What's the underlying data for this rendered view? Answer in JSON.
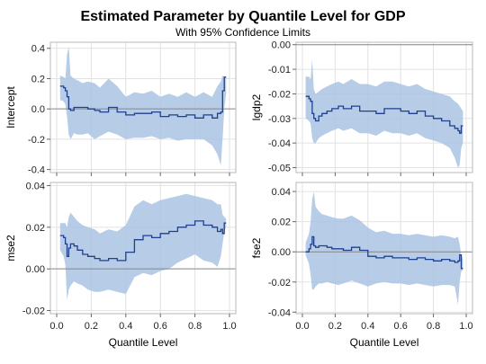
{
  "title": "Estimated Parameter by Quantile Level for GDP",
  "subtitle": "With 95% Confidence Limits",
  "colors": {
    "band": "#a9c3e3",
    "estimate": "#1f3f8f",
    "reference": "#888888",
    "frame": "#b8b8b8",
    "grid": "#e2e2e2"
  },
  "chart_data": [
    {
      "type": "area",
      "panel": "top-left",
      "ylabel": "Intercept",
      "xlabel": "",
      "xlim": [
        0,
        1
      ],
      "ylim": [
        -0.42,
        0.44
      ],
      "yticks": [
        -0.4,
        -0.2,
        0.0,
        0.2,
        0.4
      ],
      "ytick_labels": [
        "-0.4",
        "-0.2",
        "0.0",
        "0.2",
        "0.4"
      ],
      "xticks": [
        0.0,
        0.2,
        0.4,
        0.6,
        0.8,
        1.0
      ],
      "grid": true,
      "reference_line": 0,
      "x": [
        0.02,
        0.04,
        0.05,
        0.06,
        0.07,
        0.08,
        0.1,
        0.12,
        0.15,
        0.18,
        0.22,
        0.25,
        0.3,
        0.35,
        0.4,
        0.45,
        0.5,
        0.55,
        0.6,
        0.65,
        0.7,
        0.75,
        0.8,
        0.85,
        0.9,
        0.93,
        0.95,
        0.96,
        0.97,
        0.98
      ],
      "estimate": [
        0.15,
        0.14,
        0.12,
        0.08,
        0.0,
        -0.01,
        0.01,
        0.01,
        0.01,
        0.0,
        -0.01,
        -0.02,
        0.01,
        -0.02,
        -0.04,
        -0.03,
        -0.03,
        -0.02,
        -0.05,
        -0.04,
        -0.05,
        -0.04,
        -0.06,
        -0.04,
        -0.06,
        -0.03,
        -0.02,
        0.12,
        0.21,
        0.21
      ],
      "lower": [
        0.06,
        0.05,
        0.03,
        -0.05,
        -0.17,
        -0.2,
        -0.16,
        -0.17,
        -0.17,
        -0.16,
        -0.2,
        -0.18,
        -0.15,
        -0.17,
        -0.2,
        -0.19,
        -0.19,
        -0.18,
        -0.2,
        -0.19,
        -0.21,
        -0.2,
        -0.2,
        -0.2,
        -0.24,
        -0.3,
        -0.37,
        -0.2,
        0.0,
        0.1
      ],
      "upper": [
        0.22,
        0.21,
        0.2,
        0.36,
        0.41,
        0.22,
        0.2,
        0.19,
        0.17,
        0.18,
        0.17,
        0.14,
        0.2,
        0.15,
        0.08,
        0.11,
        0.1,
        0.12,
        0.08,
        0.1,
        0.08,
        0.11,
        0.08,
        0.11,
        0.08,
        0.15,
        0.18,
        0.22,
        0.21,
        0.21
      ]
    },
    {
      "type": "area",
      "panel": "top-right",
      "ylabel": "lgdp2",
      "xlabel": "",
      "xlim": [
        0,
        1
      ],
      "ylim": [
        -0.052,
        0.001
      ],
      "yticks": [
        -0.05,
        -0.04,
        -0.03,
        -0.02,
        -0.01,
        0.0
      ],
      "ytick_labels": [
        "-0.05",
        "-0.04",
        "-0.03",
        "-0.02",
        "-0.01",
        "0.00"
      ],
      "xticks": [
        0.0,
        0.2,
        0.4,
        0.6,
        0.8,
        1.0
      ],
      "grid": true,
      "reference_line": 0,
      "x": [
        0.02,
        0.04,
        0.05,
        0.06,
        0.07,
        0.08,
        0.1,
        0.12,
        0.15,
        0.18,
        0.22,
        0.25,
        0.3,
        0.35,
        0.4,
        0.45,
        0.5,
        0.55,
        0.6,
        0.65,
        0.7,
        0.75,
        0.8,
        0.85,
        0.9,
        0.93,
        0.95,
        0.96,
        0.97,
        0.98
      ],
      "estimate": [
        -0.021,
        -0.022,
        -0.023,
        -0.028,
        -0.03,
        -0.031,
        -0.029,
        -0.028,
        -0.027,
        -0.026,
        -0.025,
        -0.026,
        -0.025,
        -0.027,
        -0.027,
        -0.028,
        -0.026,
        -0.026,
        -0.027,
        -0.028,
        -0.027,
        -0.029,
        -0.03,
        -0.031,
        -0.033,
        -0.034,
        -0.035,
        -0.036,
        -0.033,
        -0.033
      ],
      "lower": [
        -0.03,
        -0.031,
        -0.032,
        -0.038,
        -0.04,
        -0.04,
        -0.038,
        -0.037,
        -0.036,
        -0.035,
        -0.034,
        -0.035,
        -0.034,
        -0.036,
        -0.036,
        -0.037,
        -0.035,
        -0.036,
        -0.036,
        -0.037,
        -0.036,
        -0.038,
        -0.039,
        -0.04,
        -0.042,
        -0.046,
        -0.05,
        -0.049,
        -0.042,
        -0.04
      ],
      "upper": [
        -0.013,
        -0.013,
        -0.014,
        -0.006,
        -0.018,
        -0.02,
        -0.019,
        -0.018,
        -0.017,
        -0.016,
        -0.015,
        -0.016,
        -0.014,
        -0.016,
        -0.016,
        -0.017,
        -0.015,
        -0.015,
        -0.016,
        -0.017,
        -0.016,
        -0.018,
        -0.019,
        -0.02,
        -0.021,
        -0.023,
        -0.024,
        -0.025,
        -0.026,
        -0.027
      ]
    },
    {
      "type": "area",
      "panel": "bottom-left",
      "ylabel": "mse2",
      "xlabel": "Quantile Level",
      "xlim": [
        0,
        1
      ],
      "ylim": [
        -0.0215,
        0.0415
      ],
      "yticks": [
        -0.02,
        0.0,
        0.02,
        0.04
      ],
      "ytick_labels": [
        "-0.02",
        "0.00",
        "0.02",
        "0.04"
      ],
      "xticks": [
        0.0,
        0.2,
        0.4,
        0.6,
        0.8,
        1.0
      ],
      "xtick_labels": [
        "0.0",
        "0.2",
        "0.4",
        "0.6",
        "0.8",
        "1.0"
      ],
      "grid": true,
      "reference_line": 0,
      "x": [
        0.02,
        0.04,
        0.05,
        0.06,
        0.07,
        0.08,
        0.1,
        0.12,
        0.15,
        0.18,
        0.22,
        0.25,
        0.3,
        0.35,
        0.4,
        0.45,
        0.5,
        0.55,
        0.6,
        0.65,
        0.7,
        0.75,
        0.8,
        0.85,
        0.9,
        0.93,
        0.95,
        0.96,
        0.97,
        0.98
      ],
      "estimate": [
        0.016,
        0.015,
        0.012,
        0.006,
        0.01,
        0.012,
        0.011,
        0.009,
        0.007,
        0.006,
        0.005,
        0.004,
        0.005,
        0.004,
        0.008,
        0.014,
        0.016,
        0.015,
        0.017,
        0.018,
        0.02,
        0.021,
        0.023,
        0.021,
        0.02,
        0.018,
        0.019,
        0.017,
        0.022,
        0.022
      ],
      "lower": [
        0.009,
        0.006,
        0.002,
        -0.015,
        -0.01,
        -0.008,
        -0.006,
        -0.007,
        -0.008,
        -0.01,
        -0.011,
        -0.011,
        -0.01,
        -0.011,
        -0.012,
        -0.004,
        -0.002,
        -0.003,
        -0.001,
        0.0,
        0.003,
        0.005,
        0.007,
        0.004,
        0.003,
        0.001,
        0.006,
        0.012,
        0.018,
        0.02
      ],
      "upper": [
        0.022,
        0.022,
        0.022,
        0.02,
        0.025,
        0.027,
        0.025,
        0.023,
        0.021,
        0.02,
        0.019,
        0.017,
        0.019,
        0.018,
        0.021,
        0.03,
        0.033,
        0.031,
        0.033,
        0.034,
        0.035,
        0.036,
        0.035,
        0.034,
        0.033,
        0.031,
        0.031,
        0.026,
        0.025,
        0.024
      ]
    },
    {
      "type": "area",
      "panel": "bottom-right",
      "ylabel": "fse2",
      "xlabel": "Quantile Level",
      "xlim": [
        0,
        1
      ],
      "ylim": [
        -0.041,
        0.046
      ],
      "yticks": [
        -0.04,
        -0.02,
        0.0,
        0.02,
        0.04
      ],
      "ytick_labels": [
        "-0.04",
        "-0.02",
        "0.00",
        "0.02",
        "0.04"
      ],
      "xticks": [
        0.0,
        0.2,
        0.4,
        0.6,
        0.8,
        1.0
      ],
      "xtick_labels": [
        "0.0",
        "0.2",
        "0.4",
        "0.6",
        "0.8",
        "1.0"
      ],
      "grid": true,
      "reference_line": 0,
      "x": [
        0.02,
        0.04,
        0.05,
        0.06,
        0.07,
        0.08,
        0.1,
        0.12,
        0.15,
        0.18,
        0.22,
        0.25,
        0.3,
        0.35,
        0.4,
        0.45,
        0.5,
        0.55,
        0.6,
        0.65,
        0.7,
        0.75,
        0.8,
        0.85,
        0.9,
        0.93,
        0.95,
        0.96,
        0.97,
        0.98
      ],
      "estimate": [
        0.0,
        0.002,
        0.005,
        0.01,
        0.004,
        0.003,
        0.004,
        0.004,
        0.003,
        0.002,
        0.002,
        0.001,
        0.003,
        0.001,
        -0.003,
        -0.004,
        -0.003,
        -0.004,
        -0.004,
        -0.005,
        -0.004,
        -0.005,
        -0.006,
        -0.005,
        -0.006,
        -0.007,
        -0.006,
        -0.002,
        -0.011,
        -0.011
      ],
      "lower": [
        -0.002,
        -0.008,
        -0.015,
        -0.025,
        -0.025,
        -0.023,
        -0.021,
        -0.021,
        -0.02,
        -0.021,
        -0.022,
        -0.021,
        -0.019,
        -0.021,
        -0.023,
        -0.021,
        -0.02,
        -0.021,
        -0.021,
        -0.022,
        -0.021,
        -0.022,
        -0.023,
        -0.022,
        -0.022,
        -0.023,
        -0.035,
        -0.02,
        -0.013,
        -0.012
      ],
      "upper": [
        0.006,
        0.012,
        0.02,
        0.035,
        0.04,
        0.03,
        0.027,
        0.025,
        0.024,
        0.023,
        0.022,
        0.022,
        0.024,
        0.021,
        0.016,
        0.013,
        0.014,
        0.012,
        0.012,
        0.011,
        0.012,
        0.011,
        0.01,
        0.011,
        0.01,
        0.009,
        0.01,
        0.005,
        -0.002,
        -0.005
      ]
    }
  ]
}
